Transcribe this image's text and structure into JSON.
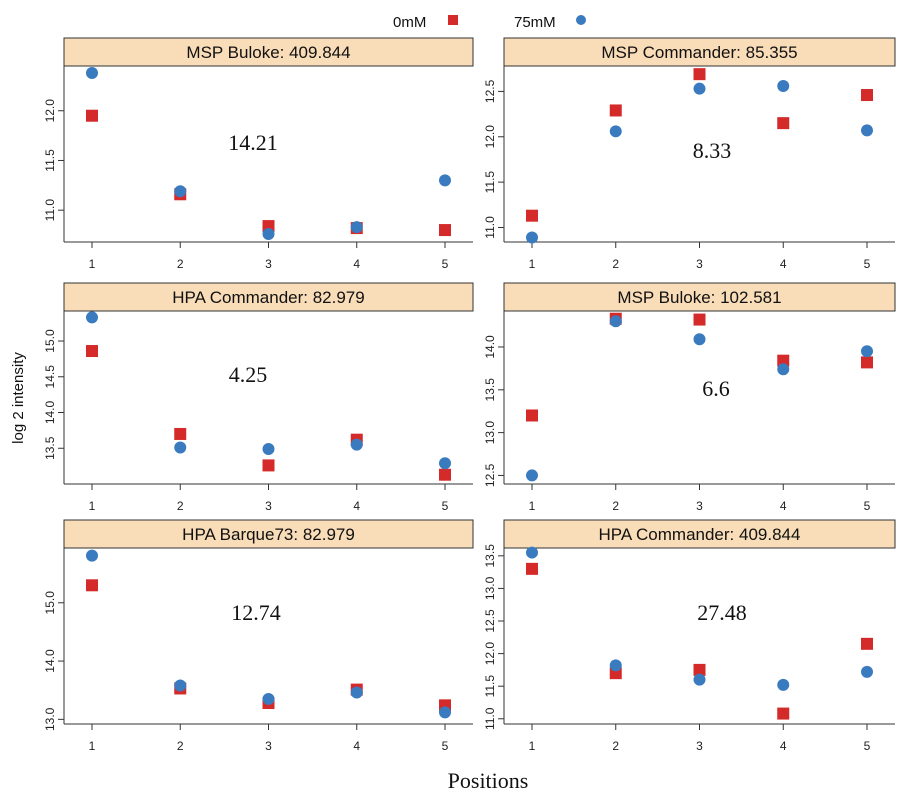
{
  "legend": [
    {
      "label": "0mM",
      "color": "#d42a2a",
      "shape": "square"
    },
    {
      "label": "75mM",
      "color": "#3a7bbf",
      "shape": "circle"
    }
  ],
  "ylabel": "log 2 intensity",
  "xlabel": "Positions",
  "chart_data": [
    {
      "type": "scatter",
      "title": "MSP Buloke: 409.844",
      "annotation": "14.21",
      "x": [
        1,
        2,
        3,
        4,
        5
      ],
      "xticks": [
        "1",
        "2",
        "3",
        "4",
        "5"
      ],
      "yticks": [
        "11.0",
        "11.5",
        "12.0"
      ],
      "ylim": [
        10.68,
        12.45
      ],
      "series": [
        {
          "name": "0mM",
          "values": [
            11.95,
            11.16,
            10.84,
            10.82,
            10.8
          ]
        },
        {
          "name": "75mM",
          "values": [
            12.38,
            11.19,
            10.76,
            10.83,
            11.3
          ]
        }
      ]
    },
    {
      "type": "scatter",
      "title": "MSP Commander: 85.355",
      "annotation": "8.33",
      "x": [
        1,
        2,
        3,
        4,
        5
      ],
      "xticks": [
        "1",
        "2",
        "3",
        "4",
        "5"
      ],
      "yticks": [
        "11.0",
        "11.5",
        "12.0",
        "12.5"
      ],
      "ylim": [
        10.84,
        12.78
      ],
      "series": [
        {
          "name": "0mM",
          "values": [
            11.13,
            12.29,
            12.69,
            12.15,
            12.46
          ]
        },
        {
          "name": "75mM",
          "values": [
            10.89,
            12.06,
            12.53,
            12.56,
            12.07
          ]
        }
      ]
    },
    {
      "type": "scatter",
      "title": "HPA Commander: 82.979",
      "annotation": "4.25",
      "x": [
        1,
        2,
        3,
        4,
        5
      ],
      "xticks": [
        "1",
        "2",
        "3",
        "4",
        "5"
      ],
      "yticks": [
        "13.5",
        "14.0",
        "14.5",
        "15.0"
      ],
      "ylim": [
        13.0,
        15.42
      ],
      "series": [
        {
          "name": "0mM",
          "values": [
            14.86,
            13.7,
            13.26,
            13.62,
            13.13
          ]
        },
        {
          "name": "75mM",
          "values": [
            15.33,
            13.51,
            13.49,
            13.55,
            13.29
          ]
        }
      ]
    },
    {
      "type": "scatter",
      "title": "MSP Buloke: 102.581",
      "annotation": "6.6",
      "x": [
        1,
        2,
        3,
        4,
        5
      ],
      "xticks": [
        "1",
        "2",
        "3",
        "4",
        "5"
      ],
      "yticks": [
        "12.5",
        "13.0",
        "13.5",
        "14.0"
      ],
      "ylim": [
        12.4,
        14.42
      ],
      "series": [
        {
          "name": "0mM",
          "values": [
            13.2,
            14.33,
            14.32,
            13.84,
            13.82
          ]
        },
        {
          "name": "75mM",
          "values": [
            12.5,
            14.3,
            14.09,
            13.74,
            13.95
          ]
        }
      ]
    },
    {
      "type": "scatter",
      "title": "HPA Barque73: 82.979",
      "annotation": "12.74",
      "x": [
        1,
        2,
        3,
        4,
        5
      ],
      "xticks": [
        "1",
        "2",
        "3",
        "4",
        "5"
      ],
      "yticks": [
        "13.0",
        "14.0",
        "15.0"
      ],
      "ylim": [
        12.92,
        15.94
      ],
      "series": [
        {
          "name": "0mM",
          "values": [
            15.3,
            13.53,
            13.28,
            13.51,
            13.24
          ]
        },
        {
          "name": "75mM",
          "values": [
            15.81,
            13.58,
            13.35,
            13.46,
            13.12
          ]
        }
      ]
    },
    {
      "type": "scatter",
      "title": "HPA Commander: 409.844",
      "annotation": "27.48",
      "x": [
        1,
        2,
        3,
        4,
        5
      ],
      "xticks": [
        "1",
        "2",
        "3",
        "4",
        "5"
      ],
      "yticks": [
        "11.0",
        "11.5",
        "12.0",
        "12.5",
        "13.0",
        "13.5"
      ],
      "ylim": [
        10.92,
        13.62
      ],
      "series": [
        {
          "name": "0mM",
          "values": [
            13.3,
            11.7,
            11.75,
            11.08,
            12.15
          ]
        },
        {
          "name": "75mM",
          "values": [
            13.55,
            11.82,
            11.6,
            11.52,
            11.72
          ]
        }
      ]
    }
  ]
}
